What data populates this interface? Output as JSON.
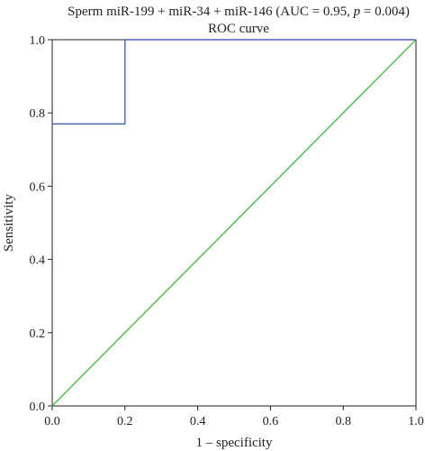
{
  "chart_data": {
    "type": "line",
    "title_main": "Sperm miR-199 + miR-34 + miR-146 (AUC = 0.95, ",
    "title_p": "p",
    "title_rest": " = 0.004)",
    "subtitle": "ROC curve",
    "xlabel": "1 – specificity",
    "ylabel": "Sensitivity",
    "xlim": [
      0,
      1
    ],
    "ylim": [
      0,
      1
    ],
    "x_ticks": [
      "0.0",
      "0.2",
      "0.4",
      "0.6",
      "0.8",
      "1.0"
    ],
    "y_ticks": [
      "0.0",
      "0.2",
      "0.4",
      "0.6",
      "0.8",
      "1.0"
    ],
    "grid": false,
    "series": [
      {
        "color": "#4a62b8",
        "x": [
          0.0,
          0.2,
          0.2,
          1.0
        ],
        "y": [
          0.77,
          0.77,
          1.0,
          1.0
        ]
      },
      {
        "color": "#4cb848",
        "x": [
          0.0,
          1.0
        ],
        "y": [
          0.0,
          1.0
        ]
      }
    ]
  }
}
